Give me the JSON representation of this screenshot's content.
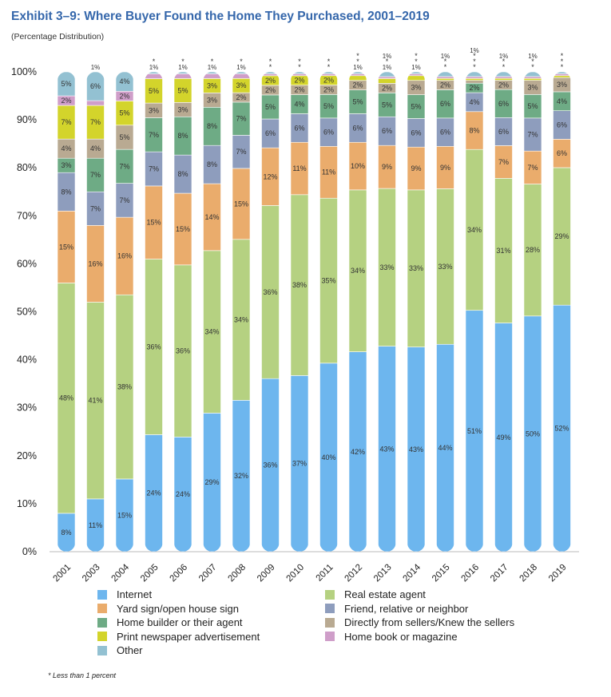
{
  "title": "Exhibit 3–9:  Where Buyer Found the Home They Purchased, 2001–2019",
  "subtitle": "(Percentage Distribution)",
  "footnote": "* Less than 1 percent",
  "chart_data": {
    "type": "bar",
    "stacked": true,
    "categories": [
      "2001",
      "2003",
      "2004",
      "2005",
      "2006",
      "2007",
      "2008",
      "2009",
      "2010",
      "2011",
      "2012",
      "2013",
      "2014",
      "2015",
      "2016",
      "2017",
      "2018",
      "2019"
    ],
    "yticks": [
      "0%",
      "10%",
      "20%",
      "30%",
      "40%",
      "50%",
      "60%",
      "70%",
      "80%",
      "90%",
      "100%"
    ],
    "ylim": [
      0,
      100
    ],
    "legend_position": "bottom",
    "series": [
      {
        "name": "Internet",
        "color": "#6db6ee",
        "values": [
          8,
          11,
          15,
          24,
          24,
          29,
          32,
          36,
          37,
          40,
          42,
          43,
          43,
          44,
          51,
          49,
          50,
          52
        ],
        "labels": [
          "8%",
          "11%",
          "15%",
          "24%",
          "24%",
          "29%",
          "32%",
          "36%",
          "37%",
          "40%",
          "42%",
          "43%",
          "43%",
          "44%",
          "51%",
          "49%",
          "50%",
          "52%"
        ]
      },
      {
        "name": "Real estate agent",
        "color": "#b5d181",
        "values": [
          48,
          41,
          38,
          36,
          36,
          34,
          34,
          36,
          38,
          35,
          34,
          33,
          33,
          33,
          34,
          31,
          28,
          29
        ],
        "labels": [
          "48%",
          "41%",
          "38%",
          "36%",
          "36%",
          "34%",
          "34%",
          "36%",
          "38%",
          "35%",
          "34%",
          "33%",
          "33%",
          "33%",
          "34%",
          "31%",
          "28%",
          "29%"
        ]
      },
      {
        "name": "Yard sign/open house sign",
        "color": "#eaac6c",
        "values": [
          15,
          16,
          16,
          15,
          15,
          14,
          15,
          12,
          11,
          11,
          10,
          9,
          9,
          9,
          8,
          7,
          7,
          6
        ],
        "labels": [
          "15%",
          "16%",
          "16%",
          "15%",
          "15%",
          "14%",
          "15%",
          "12%",
          "11%",
          "11%",
          "10%",
          "9%",
          "9%",
          "9%",
          "8%",
          "7%",
          "7%",
          "6%"
        ]
      },
      {
        "name": "Friend, relative or neighbor",
        "color": "#8e9dbd",
        "values": [
          8,
          7,
          7,
          7,
          8,
          8,
          7,
          6,
          6,
          6,
          6,
          6,
          6,
          6,
          4,
          6,
          7,
          6
        ],
        "labels": [
          "8%",
          "7%",
          "7%",
          "7%",
          "8%",
          "8%",
          "7%",
          "6%",
          "6%",
          "6%",
          "6%",
          "6%",
          "6%",
          "6%",
          "4%",
          "6%",
          "7%",
          "6%"
        ]
      },
      {
        "name": "Home builder or their agent",
        "color": "#6eab85",
        "values": [
          3,
          7,
          7,
          7,
          8,
          8,
          7,
          5,
          4,
          5,
          5,
          5,
          5,
          6,
          2,
          6,
          5,
          4
        ],
        "labels": [
          "3%",
          "7%",
          "7%",
          "7%",
          "8%",
          "8%",
          "7%",
          "5%",
          "4%",
          "5%",
          "5%",
          "5%",
          "5%",
          "6%",
          "2%",
          "6%",
          "5%",
          "4%"
        ]
      },
      {
        "name": "Directly from sellers/Knew the sellers",
        "color": "#b9aa92",
        "values": [
          4,
          4,
          5,
          3,
          3,
          3,
          2,
          2,
          2,
          2,
          2,
          2,
          3,
          2,
          0.6,
          2,
          3,
          3
        ],
        "labels": [
          "4%",
          "4%",
          "5%",
          "3%",
          "3%",
          "3%",
          "2%",
          "2%",
          "2%",
          "2%",
          "2%",
          "2%",
          "3%",
          "2%",
          "*",
          "2%",
          "3%",
          "3%"
        ]
      },
      {
        "name": "Print newspaper advertisement",
        "color": "#d3d42b",
        "values": [
          7,
          7,
          5,
          5,
          5,
          3,
          3,
          2,
          2,
          2,
          1,
          1,
          1,
          0.4,
          0.4,
          0.4,
          0.4,
          0.4
        ],
        "labels": [
          "7%",
          "7%",
          "5%",
          "5%",
          "5%",
          "3%",
          "3%",
          "2%",
          "2%",
          "2%",
          "1%",
          "1%",
          "1%",
          "*",
          "*",
          "*",
          "*",
          "*"
        ]
      },
      {
        "name": "Home book or magazine",
        "color": "#cf9ec9",
        "values": [
          2,
          1,
          2,
          1,
          1,
          1,
          1,
          0.4,
          0.4,
          0.4,
          0.4,
          0.4,
          0.4,
          0.4,
          0.4,
          0.4,
          0.4,
          0.4
        ],
        "labels": [
          "2%",
          "1%",
          "2%",
          "1%",
          "1%",
          "1%",
          "1%",
          "*",
          "*",
          "*",
          "*",
          "*",
          "*",
          "*",
          "*",
          "*",
          "*",
          "*"
        ]
      },
      {
        "name": "Other",
        "color": "#93c1d2",
        "values": [
          5,
          6,
          4,
          0.4,
          0.4,
          0.4,
          0.4,
          0.4,
          0.4,
          0.4,
          0.4,
          1,
          0.4,
          1,
          1,
          1,
          1,
          0.4
        ],
        "labels": [
          "5%",
          "6%",
          "4%",
          "*",
          "*",
          "*",
          "*",
          "*",
          "*",
          "*",
          "*",
          "1%",
          "*",
          "1%",
          "1%",
          "1%",
          "1%",
          "*"
        ]
      }
    ]
  },
  "legend": [
    {
      "name": "Internet",
      "color": "#6db6ee"
    },
    {
      "name": "Real estate agent",
      "color": "#b5d181"
    },
    {
      "name": "Yard sign/open house sign",
      "color": "#eaac6c"
    },
    {
      "name": "Friend, relative or neighbor",
      "color": "#8e9dbd"
    },
    {
      "name": "Home builder or their agent",
      "color": "#6eab85"
    },
    {
      "name": "Directly from sellers/Knew the sellers",
      "color": "#b9aa92"
    },
    {
      "name": "Print newspaper advertisement",
      "color": "#d3d42b"
    },
    {
      "name": "Home book or magazine",
      "color": "#cf9ec9"
    },
    {
      "name": "Other",
      "color": "#93c1d2"
    }
  ]
}
